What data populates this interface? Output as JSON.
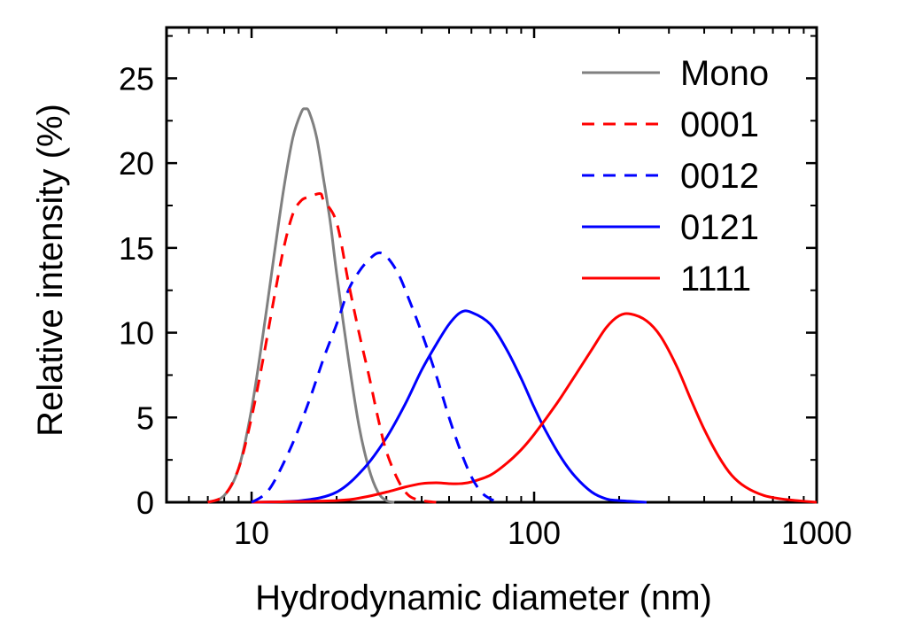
{
  "chart_data": {
    "type": "line",
    "title": "",
    "xlabel": "Hydrodynamic diameter (nm)",
    "ylabel": "Relative intensity (%)",
    "xscale": "log",
    "xlim": [
      5,
      1000
    ],
    "ylim": [
      0,
      28
    ],
    "xticks": [
      {
        "value": 10,
        "label": "10"
      },
      {
        "value": 100,
        "label": "100"
      },
      {
        "value": 1000,
        "label": "1000"
      }
    ],
    "yticks": [
      {
        "value": 0,
        "label": "0"
      },
      {
        "value": 5,
        "label": "5"
      },
      {
        "value": 10,
        "label": "10"
      },
      {
        "value": 15,
        "label": "15"
      },
      {
        "value": 20,
        "label": "20"
      },
      {
        "value": 25,
        "label": "25"
      }
    ],
    "legend_position": "top-right",
    "series": [
      {
        "name": "Mono",
        "color": "#808080",
        "dash": "solid",
        "points": [
          [
            7,
            0
          ],
          [
            8,
            0.4
          ],
          [
            9,
            2
          ],
          [
            10,
            5.5
          ],
          [
            11,
            10
          ],
          [
            12,
            14.5
          ],
          [
            13,
            18.5
          ],
          [
            14,
            21.5
          ],
          [
            15,
            23
          ],
          [
            15.5,
            23.2
          ],
          [
            16,
            23
          ],
          [
            17,
            21.5
          ],
          [
            18,
            19
          ],
          [
            19,
            16.5
          ],
          [
            20,
            13.5
          ],
          [
            22,
            8.5
          ],
          [
            24,
            4.5
          ],
          [
            26,
            2
          ],
          [
            28,
            0.6
          ],
          [
            30,
            0.1
          ],
          [
            32,
            0
          ]
        ]
      },
      {
        "name": "0001",
        "color": "#ff0000",
        "dash": "dashed",
        "points": [
          [
            7,
            0
          ],
          [
            8,
            0.4
          ],
          [
            9,
            2
          ],
          [
            10,
            5
          ],
          [
            11,
            8.5
          ],
          [
            12,
            12
          ],
          [
            13,
            15
          ],
          [
            14,
            17
          ],
          [
            15,
            17.8
          ],
          [
            16,
            18
          ],
          [
            17.5,
            18.2
          ],
          [
            18,
            17.8
          ],
          [
            20,
            16.5
          ],
          [
            22,
            13
          ],
          [
            24,
            10
          ],
          [
            26,
            7.5
          ],
          [
            28,
            5
          ],
          [
            30,
            3
          ],
          [
            33,
            1.3
          ],
          [
            36,
            0.4
          ],
          [
            40,
            0.1
          ],
          [
            45,
            0
          ]
        ]
      },
      {
        "name": "0012",
        "color": "#0000ff",
        "dash": "dashed",
        "points": [
          [
            10,
            0
          ],
          [
            11,
            0.4
          ],
          [
            12,
            1.2
          ],
          [
            14,
            3.5
          ],
          [
            16,
            6
          ],
          [
            18,
            8.5
          ],
          [
            20,
            10.5
          ],
          [
            22,
            12.5
          ],
          [
            24,
            13.6
          ],
          [
            26,
            14.3
          ],
          [
            28,
            14.7
          ],
          [
            30,
            14.5
          ],
          [
            33,
            13.5
          ],
          [
            36,
            12
          ],
          [
            40,
            10
          ],
          [
            45,
            7.5
          ],
          [
            50,
            5
          ],
          [
            55,
            3
          ],
          [
            60,
            1.5
          ],
          [
            65,
            0.6
          ],
          [
            70,
            0.2
          ],
          [
            75,
            0
          ]
        ]
      },
      {
        "name": "0121",
        "color": "#0000ff",
        "dash": "solid",
        "points": [
          [
            10,
            0
          ],
          [
            15,
            0.1
          ],
          [
            20,
            0.6
          ],
          [
            25,
            2
          ],
          [
            30,
            3.8
          ],
          [
            35,
            5.8
          ],
          [
            40,
            7.8
          ],
          [
            45,
            9.3
          ],
          [
            50,
            10.5
          ],
          [
            55,
            11.2
          ],
          [
            60,
            11.2
          ],
          [
            70,
            10.5
          ],
          [
            80,
            9
          ],
          [
            90,
            7.3
          ],
          [
            100,
            5.6
          ],
          [
            110,
            4.2
          ],
          [
            125,
            2.6
          ],
          [
            140,
            1.5
          ],
          [
            160,
            0.6
          ],
          [
            180,
            0.2
          ],
          [
            200,
            0.1
          ],
          [
            250,
            0
          ]
        ]
      },
      {
        "name": "1111",
        "color": "#ff0000",
        "dash": "solid",
        "points": [
          [
            10,
            0
          ],
          [
            20,
            0.1
          ],
          [
            25,
            0.3
          ],
          [
            30,
            0.6
          ],
          [
            35,
            0.9
          ],
          [
            40,
            1.1
          ],
          [
            45,
            1.15
          ],
          [
            50,
            1.1
          ],
          [
            55,
            1.1
          ],
          [
            60,
            1.2
          ],
          [
            70,
            1.6
          ],
          [
            80,
            2.3
          ],
          [
            90,
            3.1
          ],
          [
            100,
            4
          ],
          [
            120,
            5.8
          ],
          [
            140,
            7.5
          ],
          [
            160,
            9
          ],
          [
            180,
            10.3
          ],
          [
            200,
            11
          ],
          [
            220,
            11.1
          ],
          [
            250,
            10.7
          ],
          [
            280,
            9.8
          ],
          [
            320,
            8
          ],
          [
            360,
            6
          ],
          [
            400,
            4.3
          ],
          [
            450,
            2.7
          ],
          [
            500,
            1.6
          ],
          [
            560,
            0.9
          ],
          [
            650,
            0.4
          ],
          [
            750,
            0.2
          ],
          [
            850,
            0.1
          ],
          [
            1000,
            0
          ]
        ]
      }
    ]
  }
}
